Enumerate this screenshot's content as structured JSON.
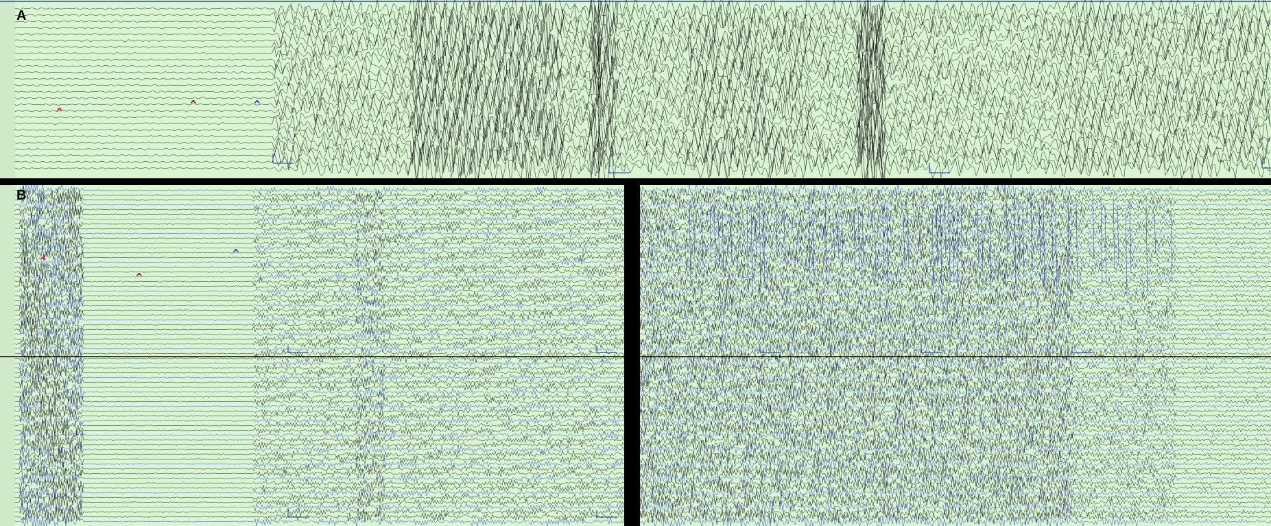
{
  "panels": {
    "A": {
      "label": "A"
    },
    "B": {
      "label": "B"
    }
  },
  "colors": {
    "background": "#d9f5d2",
    "trace_black": "#1a1a1a",
    "trace_blue": "#3344cc",
    "separator": "#000000",
    "marker_red": "#e02020",
    "marker_brown": "#6b3a12",
    "marker_blue": "#1f4fd8"
  },
  "markers": [
    {
      "panel": "A",
      "color": "red",
      "symbol": "^"
    },
    {
      "panel": "A",
      "color": "brown",
      "symbol": "^"
    },
    {
      "panel": "A",
      "color": "blue",
      "symbol": "^"
    },
    {
      "panel": "B",
      "color": "red",
      "symbol": "^"
    },
    {
      "panel": "B",
      "color": "brown",
      "symbol": "^"
    },
    {
      "panel": "B",
      "color": "blue",
      "symbol": "^"
    }
  ]
}
